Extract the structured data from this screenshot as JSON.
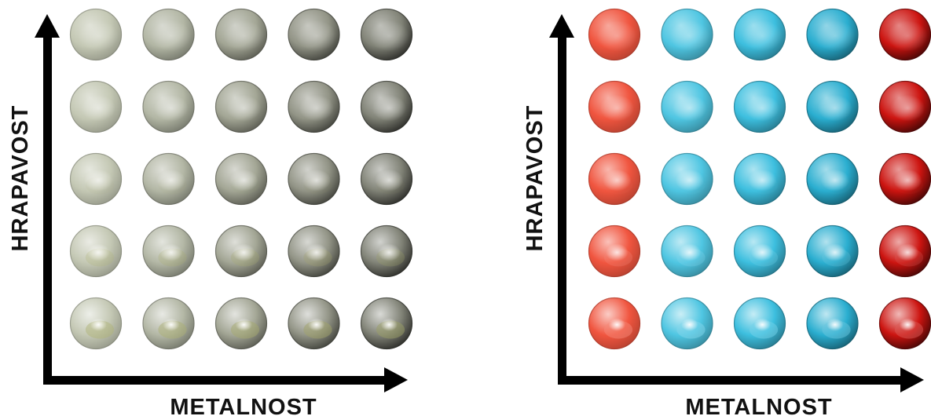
{
  "panels": [
    {
      "id": "gray",
      "x_axis_label": "METALNOST",
      "y_axis_label": "HRAPAVOST",
      "base_color": "#c4c8b4",
      "metal_color": "#2a2a22",
      "reflection_color": "#a7ab5f"
    },
    {
      "id": "colored",
      "x_axis_label": "METALNOST",
      "y_axis_label": "HRAPAVOST",
      "column_colors": [
        "#f0553f",
        "#4fc6e2",
        "#3dbfdf",
        "#2aaed0",
        "#cc1410"
      ],
      "column_metal": [
        0.0,
        0.15,
        0.3,
        0.5,
        1.0
      ]
    }
  ],
  "grid": {
    "rows": 5,
    "columns": 5,
    "row_roughness": [
      1.0,
      0.75,
      0.5,
      0.25,
      0.0
    ],
    "column_metalness": [
      0.0,
      0.25,
      0.5,
      0.75,
      1.0
    ]
  }
}
